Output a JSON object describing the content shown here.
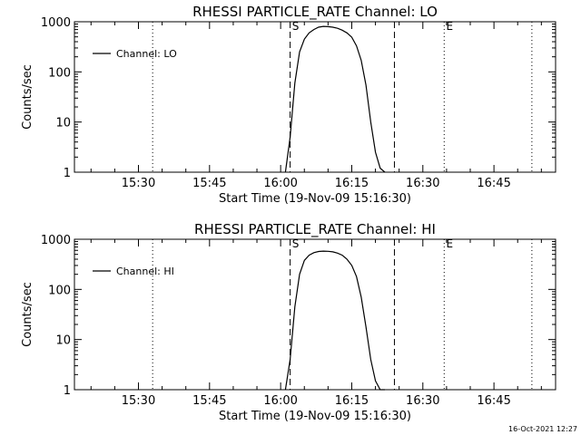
{
  "footer": {
    "timestamp": "16-Oct-2021 12:27"
  },
  "chart_data": [
    {
      "type": "line",
      "title": "RHESSI PARTICLE_RATE Channel: LO",
      "xlabel": "Start Time (19-Nov-09 15:16:30)",
      "ylabel": "Counts/sec",
      "yscale": "log",
      "ylim": [
        1,
        1000
      ],
      "xlim": [
        "15:16:30",
        "16:58:00"
      ],
      "x_ticks": [
        "15:30",
        "15:45",
        "16:00",
        "16:15",
        "16:30",
        "16:45"
      ],
      "y_ticks": [
        "1",
        "10",
        "100",
        "1000"
      ],
      "legend": {
        "label": "Channel: LO",
        "placement": "top-left"
      },
      "markers": [
        {
          "label": "S",
          "time": "16:02"
        },
        {
          "label": "E",
          "time": "16:34:30"
        }
      ],
      "dashed_lines": [
        "16:02",
        "16:24"
      ],
      "dotted_lines": [
        "15:33",
        "16:34:30",
        "16:53"
      ],
      "series": [
        {
          "name": "Channel: LO",
          "x": [
            "16:01:00",
            "16:02:00",
            "16:03:00",
            "16:04:00",
            "16:05:00",
            "16:06:00",
            "16:07:00",
            "16:08:00",
            "16:09:00",
            "16:10:00",
            "16:11:00",
            "16:12:00",
            "16:13:00",
            "16:14:00",
            "16:15:00",
            "16:16:00",
            "16:17:00",
            "16:18:00",
            "16:19:00",
            "16:20:00",
            "16:21:00",
            "16:22:00"
          ],
          "y": [
            1,
            5,
            60,
            250,
            450,
            600,
            700,
            780,
            810,
            800,
            780,
            740,
            680,
            600,
            490,
            330,
            170,
            55,
            10,
            2.5,
            1.2,
            1
          ]
        }
      ]
    },
    {
      "type": "line",
      "title": "RHESSI PARTICLE_RATE Channel: HI",
      "xlabel": "Start Time (19-Nov-09 15:16:30)",
      "ylabel": "Counts/sec",
      "yscale": "log",
      "ylim": [
        1,
        1000
      ],
      "xlim": [
        "15:16:30",
        "16:58:00"
      ],
      "x_ticks": [
        "15:30",
        "15:45",
        "16:00",
        "16:15",
        "16:30",
        "16:45"
      ],
      "y_ticks": [
        "1",
        "10",
        "100",
        "1000"
      ],
      "legend": {
        "label": "Channel: HI",
        "placement": "top-left"
      },
      "markers": [
        {
          "label": "S",
          "time": "16:02"
        },
        {
          "label": "E",
          "time": "16:34:30"
        }
      ],
      "dashed_lines": [
        "16:02",
        "16:24"
      ],
      "dotted_lines": [
        "15:33",
        "16:34:30",
        "16:53"
      ],
      "series": [
        {
          "name": "Channel: HI",
          "x": [
            "16:01:00",
            "16:02:00",
            "16:03:00",
            "16:04:00",
            "16:05:00",
            "16:06:00",
            "16:07:00",
            "16:08:00",
            "16:09:00",
            "16:10:00",
            "16:11:00",
            "16:12:00",
            "16:13:00",
            "16:14:00",
            "16:15:00",
            "16:16:00",
            "16:17:00",
            "16:18:00",
            "16:19:00",
            "16:20:00",
            "16:21:00",
            "16:22:00"
          ],
          "y": [
            1,
            4,
            45,
            200,
            380,
            480,
            540,
            570,
            580,
            575,
            560,
            530,
            480,
            400,
            300,
            180,
            70,
            18,
            4,
            1.5,
            1,
            1
          ]
        }
      ]
    }
  ]
}
